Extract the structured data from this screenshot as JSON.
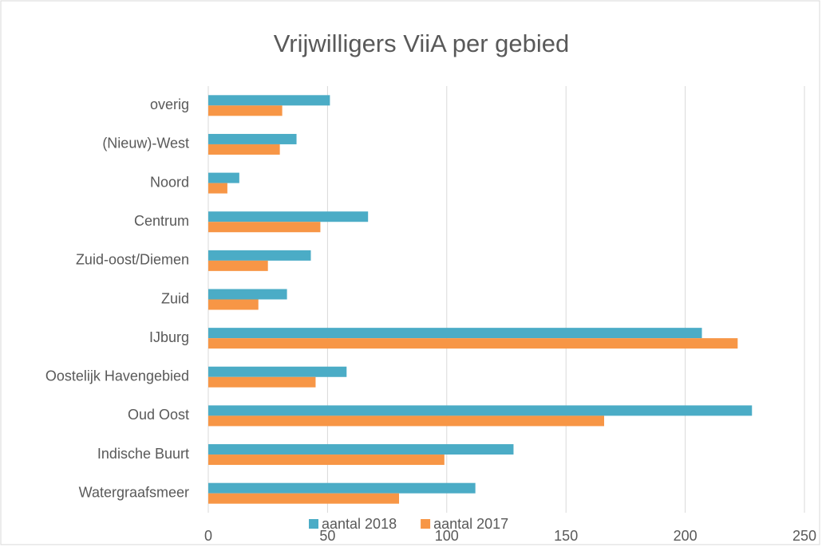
{
  "chart_data": {
    "type": "bar",
    "orientation": "horizontal",
    "title": "Vrijwilligers ViiA per gebied",
    "categories": [
      "overig",
      "(Nieuw)-West",
      "Noord",
      "Centrum",
      "Zuid-oost/Diemen",
      "Zuid",
      "IJburg",
      "Oostelijk Havengebied",
      "Oud Oost",
      "Indische Buurt",
      "Watergraafsmeer"
    ],
    "series": [
      {
        "name": "aantal 2018",
        "color": "#4bacc6",
        "values": [
          51,
          37,
          13,
          67,
          43,
          33,
          207,
          58,
          228,
          128,
          112
        ]
      },
      {
        "name": "aantal 2017",
        "color": "#f79646",
        "values": [
          31,
          30,
          8,
          47,
          25,
          21,
          222,
          45,
          166,
          99,
          80
        ]
      }
    ],
    "xlim": [
      0,
      250
    ],
    "xticks": [
      0,
      50,
      100,
      150,
      200,
      250
    ],
    "grid": true,
    "legend": "bottom"
  }
}
